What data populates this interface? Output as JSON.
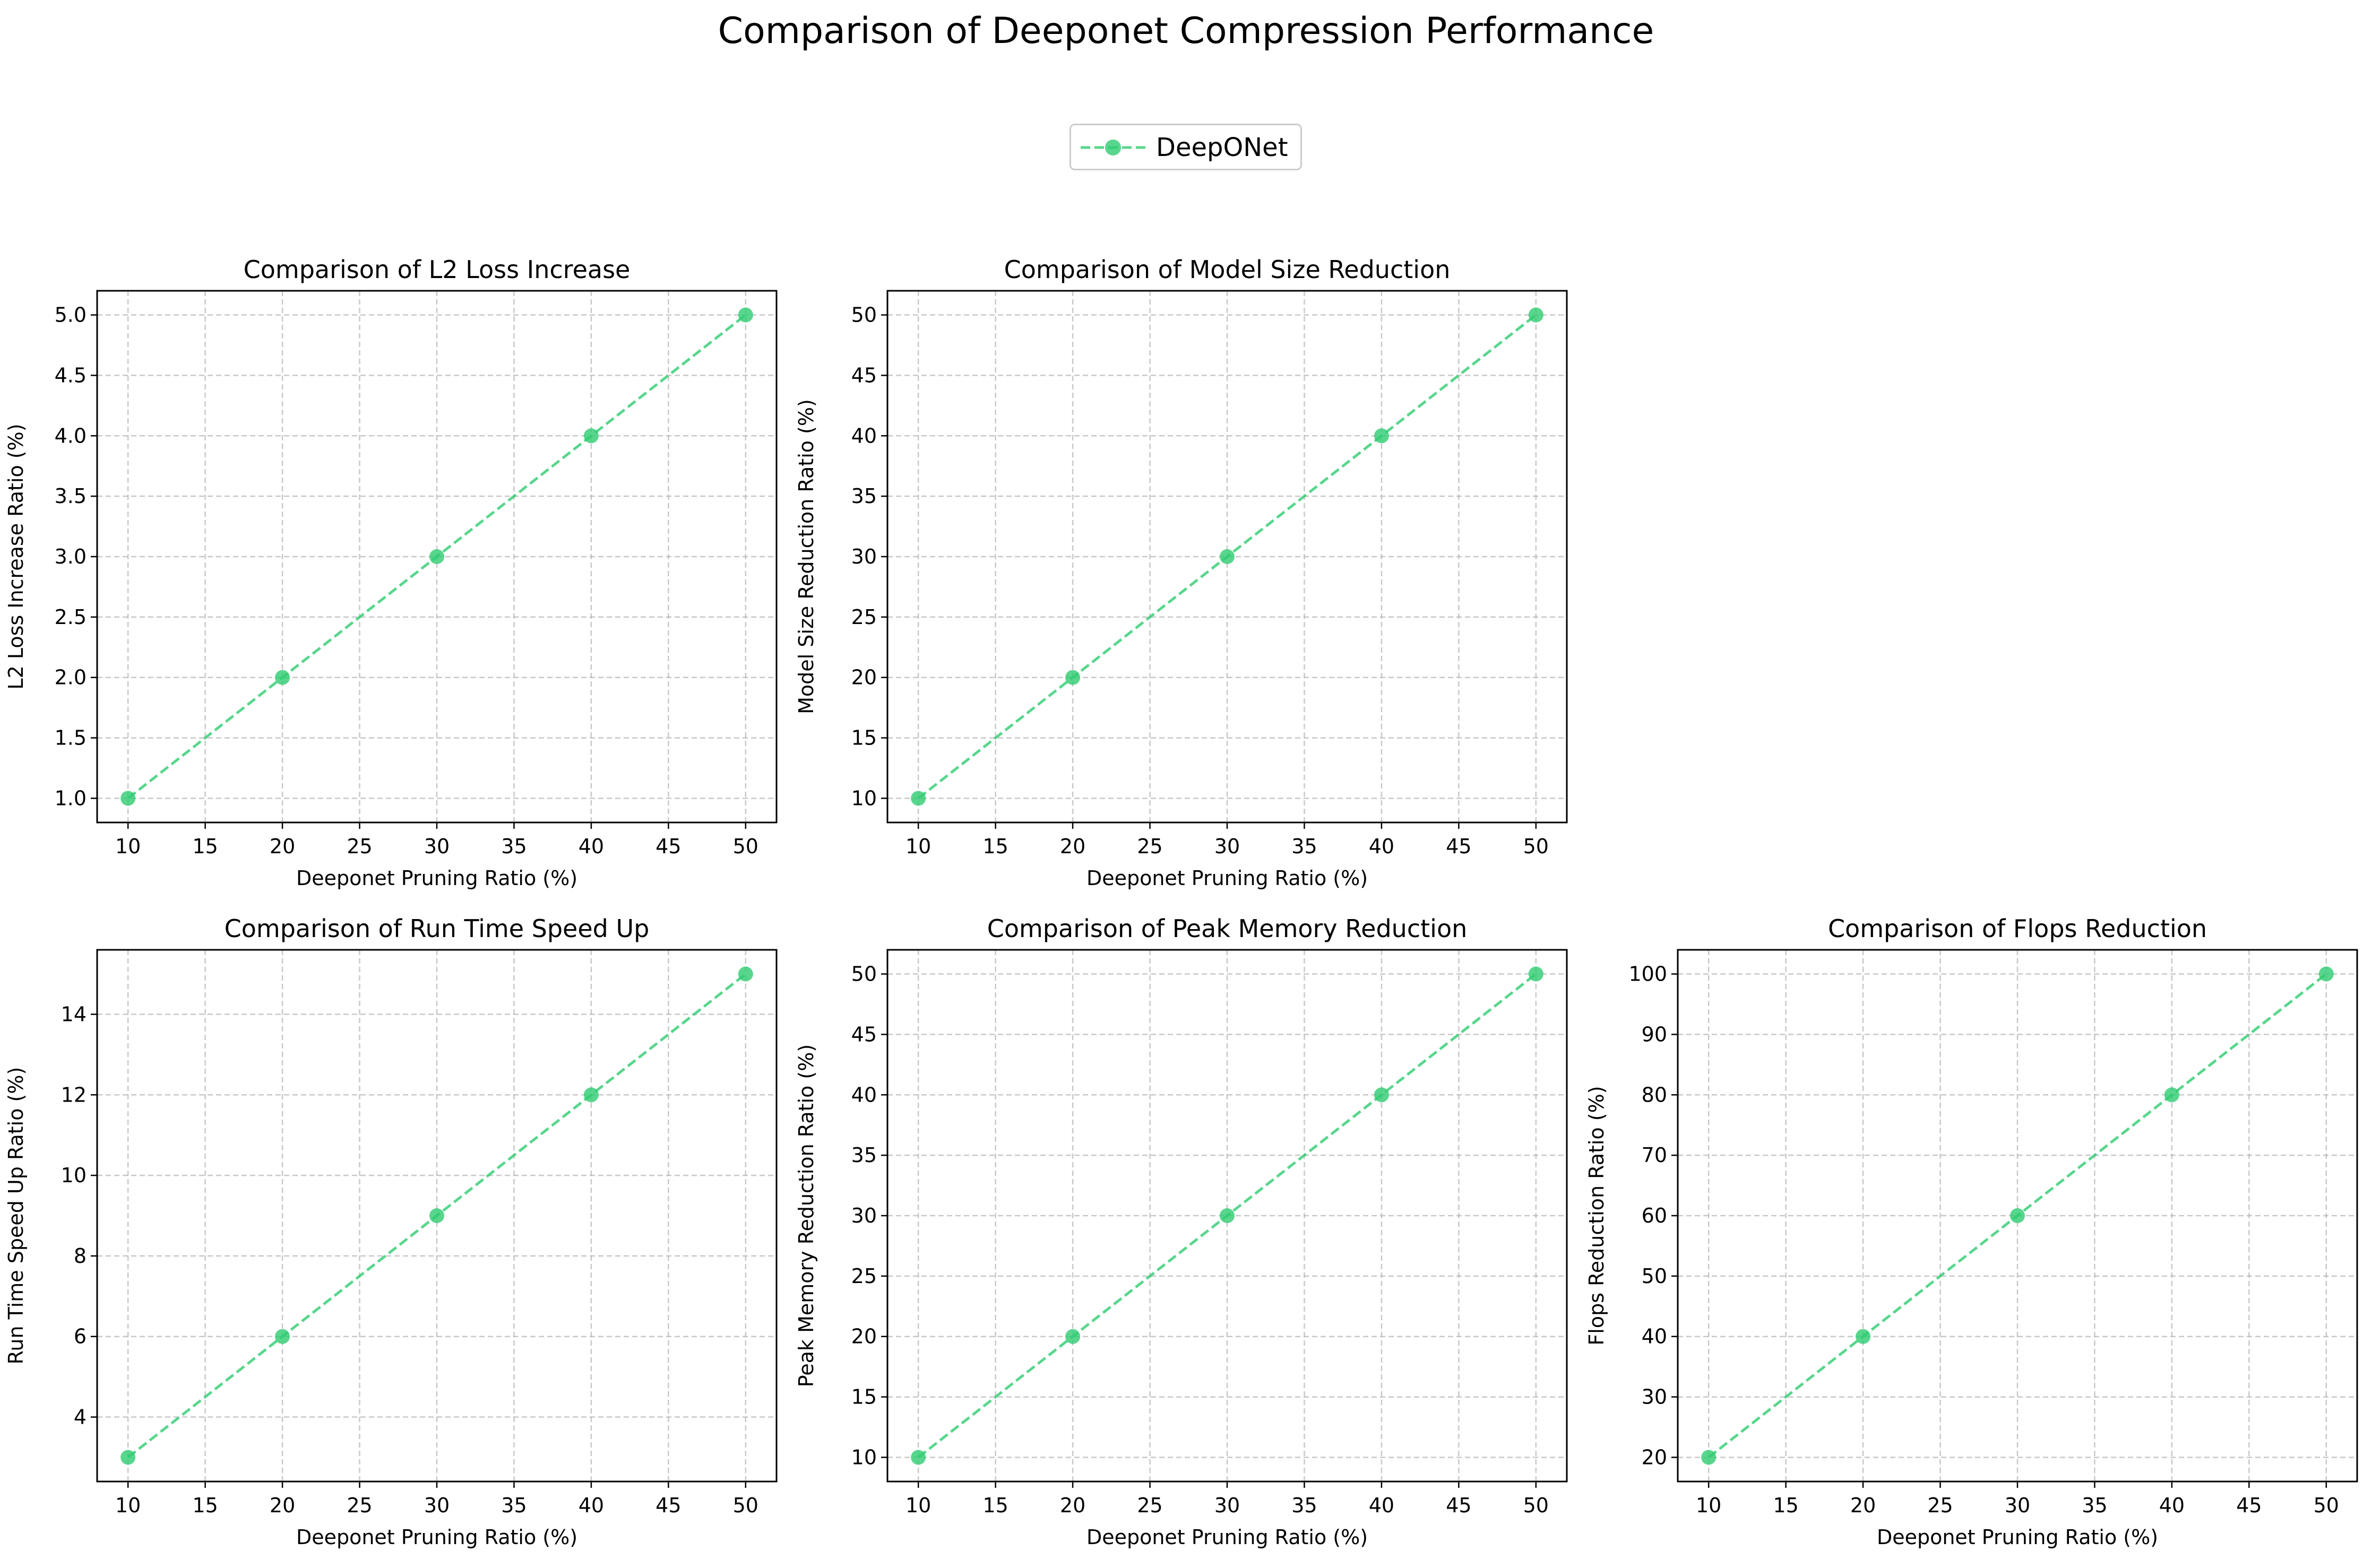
{
  "title": "Comparison of Deeponet Compression Performance",
  "legend": {
    "label": "DeepONet",
    "color": "#2ecc71",
    "marker": "circle",
    "linestyle": "dashed"
  },
  "chart_data": [
    {
      "type": "line",
      "title": "Comparison of L2 Loss Increase",
      "xlabel": "Deeponet Pruning Ratio (%)",
      "ylabel": "L2 Loss Increase Ratio (%)",
      "x": [
        10,
        20,
        30,
        40,
        50
      ],
      "series": [
        {
          "name": "DeepONet",
          "values": [
            1,
            2,
            3,
            4,
            5
          ]
        }
      ],
      "xlim": [
        8,
        52
      ],
      "ylim": [
        0.8,
        5.2
      ],
      "xticks": [
        10,
        15,
        20,
        25,
        30,
        35,
        40,
        45,
        50
      ],
      "yticks": [
        "1.0",
        "1.5",
        "2.0",
        "2.5",
        "3.0",
        "3.5",
        "4.0",
        "4.5",
        "5.0"
      ],
      "grid": true
    },
    {
      "type": "line",
      "title": "Comparison of Model Size Reduction",
      "xlabel": "Deeponet Pruning Ratio (%)",
      "ylabel": "Model Size Reduction Ratio (%)",
      "x": [
        10,
        20,
        30,
        40,
        50
      ],
      "series": [
        {
          "name": "DeepONet",
          "values": [
            10,
            20,
            30,
            40,
            50
          ]
        }
      ],
      "xlim": [
        8,
        52
      ],
      "ylim": [
        8,
        52
      ],
      "xticks": [
        10,
        15,
        20,
        25,
        30,
        35,
        40,
        45,
        50
      ],
      "yticks": [
        "10",
        "15",
        "20",
        "25",
        "30",
        "35",
        "40",
        "45",
        "50"
      ],
      "grid": true
    },
    {
      "type": "line",
      "title": "Comparison of Run Time Speed Up",
      "xlabel": "Deeponet Pruning Ratio (%)",
      "ylabel": "Run Time Speed Up Ratio (%)",
      "x": [
        10,
        20,
        30,
        40,
        50
      ],
      "series": [
        {
          "name": "DeepONet",
          "values": [
            3,
            6,
            9,
            12,
            15
          ]
        }
      ],
      "xlim": [
        8,
        52
      ],
      "ylim": [
        2.4,
        15.6
      ],
      "xticks": [
        10,
        15,
        20,
        25,
        30,
        35,
        40,
        45,
        50
      ],
      "yticks": [
        "4",
        "6",
        "8",
        "10",
        "12",
        "14"
      ],
      "grid": true
    },
    {
      "type": "line",
      "title": "Comparison of Peak Memory Reduction",
      "xlabel": "Deeponet Pruning Ratio (%)",
      "ylabel": "Peak Memory Reduction Ratio (%)",
      "x": [
        10,
        20,
        30,
        40,
        50
      ],
      "series": [
        {
          "name": "DeepONet",
          "values": [
            10,
            20,
            30,
            40,
            50
          ]
        }
      ],
      "xlim": [
        8,
        52
      ],
      "ylim": [
        8,
        52
      ],
      "xticks": [
        10,
        15,
        20,
        25,
        30,
        35,
        40,
        45,
        50
      ],
      "yticks": [
        "10",
        "15",
        "20",
        "25",
        "30",
        "35",
        "40",
        "45",
        "50"
      ],
      "grid": true
    },
    {
      "type": "line",
      "title": "Comparison of Flops Reduction",
      "xlabel": "Deeponet Pruning Ratio (%)",
      "ylabel": "Flops Reduction Ratio (%)",
      "x": [
        10,
        20,
        30,
        40,
        50
      ],
      "series": [
        {
          "name": "DeepONet",
          "values": [
            20,
            40,
            60,
            80,
            100
          ]
        }
      ],
      "xlim": [
        8,
        52
      ],
      "ylim": [
        16,
        104
      ],
      "xticks": [
        10,
        15,
        20,
        25,
        30,
        35,
        40,
        45,
        50
      ],
      "yticks": [
        "20",
        "30",
        "40",
        "50",
        "60",
        "70",
        "80",
        "90",
        "100"
      ],
      "grid": true
    }
  ]
}
